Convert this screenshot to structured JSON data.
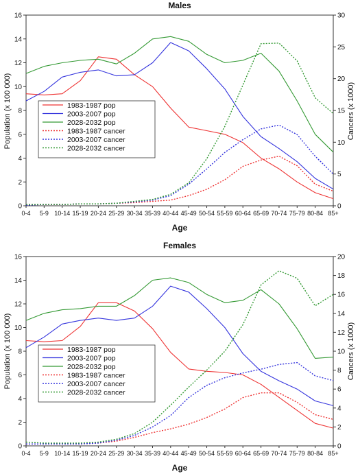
{
  "chart_data": [
    {
      "type": "line",
      "title": "Males",
      "xlabel": "Age",
      "ylabel_left": "Population (x 100 000)",
      "ylabel_right": "Cancers (x 1000)",
      "ylim_left": [
        0,
        16
      ],
      "ylim_right": [
        0,
        30
      ],
      "yticks_left": [
        "0",
        "2",
        "4",
        "6",
        "8",
        "10",
        "12",
        "14",
        "16"
      ],
      "yticks_right": [
        "0",
        "5",
        "10",
        "15",
        "20",
        "25",
        "30"
      ],
      "categories": [
        "0-4",
        "5-9",
        "10-14",
        "15-19",
        "20-24",
        "25-29",
        "30-34",
        "35-39",
        "40-44",
        "45-49",
        "50-54",
        "55-59",
        "60-64",
        "65-69",
        "70-74",
        "75-79",
        "80-84",
        "85+"
      ],
      "legend_position": "left",
      "series": [
        {
          "name": "1983-1987 pop",
          "axis": "left",
          "style": "solid",
          "color": "#ee3333",
          "values": [
            9.4,
            9.3,
            9.4,
            10.5,
            12.5,
            12.3,
            11.0,
            10.0,
            8.2,
            6.6,
            6.3,
            6.0,
            5.3,
            4.0,
            3.1,
            2.0,
            1.1,
            0.6
          ]
        },
        {
          "name": "2003-2007 pop",
          "axis": "left",
          "style": "solid",
          "color": "#3333dd",
          "values": [
            8.8,
            9.6,
            10.8,
            11.2,
            11.4,
            10.9,
            11.0,
            12.0,
            13.7,
            13.0,
            11.5,
            9.8,
            7.5,
            5.8,
            4.8,
            3.7,
            2.3,
            1.4
          ]
        },
        {
          "name": "2028-2032 pop",
          "axis": "left",
          "style": "solid",
          "color": "#339933",
          "values": [
            11.1,
            11.7,
            12.0,
            12.2,
            12.3,
            11.9,
            12.8,
            14.0,
            14.2,
            13.8,
            12.7,
            12.0,
            12.2,
            12.8,
            11.3,
            8.8,
            6.0,
            4.5
          ]
        },
        {
          "name": "1983-1987 cancer",
          "axis": "right",
          "style": "dotted",
          "color": "#ee3333",
          "values": [
            0.2,
            0.2,
            0.2,
            0.3,
            0.3,
            0.4,
            0.5,
            0.7,
            0.9,
            1.6,
            2.6,
            4.1,
            6.2,
            7.2,
            7.8,
            6.3,
            3.4,
            2.3
          ]
        },
        {
          "name": "2003-2007 cancer",
          "axis": "right",
          "style": "dotted",
          "color": "#3333dd",
          "values": [
            0.1,
            0.2,
            0.2,
            0.3,
            0.3,
            0.4,
            0.6,
            0.9,
            1.6,
            3.4,
            5.8,
            8.4,
            10.4,
            12.1,
            12.7,
            11.2,
            7.8,
            5.0
          ]
        },
        {
          "name": "2028-2032 cancer",
          "axis": "right",
          "style": "dotted",
          "color": "#339933",
          "values": [
            0.2,
            0.2,
            0.2,
            0.3,
            0.3,
            0.4,
            0.7,
            1.0,
            1.8,
            3.6,
            7.4,
            12.5,
            19.0,
            25.5,
            25.6,
            22.8,
            17.0,
            14.5
          ]
        }
      ]
    },
    {
      "type": "line",
      "title": "Females",
      "xlabel": "Age",
      "ylabel_left": "Population (x 100 000)",
      "ylabel_right": "Cancers (x 1000)",
      "ylim_left": [
        0,
        16
      ],
      "ylim_right": [
        0,
        20
      ],
      "yticks_left": [
        "0",
        "2",
        "4",
        "6",
        "8",
        "10",
        "12",
        "14",
        "16"
      ],
      "yticks_right": [
        "0",
        "2",
        "4",
        "6",
        "8",
        "10",
        "12",
        "14",
        "16",
        "18",
        "20"
      ],
      "categories": [
        "0-4",
        "5-9",
        "10-14",
        "15-19",
        "20-24",
        "25-29",
        "30-34",
        "35-39",
        "40-44",
        "45-49",
        "50-54",
        "55-59",
        "60-64",
        "65-69",
        "70-74",
        "75-79",
        "80-84",
        "85+"
      ],
      "legend_position": "left",
      "series": [
        {
          "name": "1983-1987 pop",
          "axis": "left",
          "style": "solid",
          "color": "#ee3333",
          "values": [
            8.9,
            8.8,
            8.9,
            10.1,
            12.1,
            12.1,
            11.4,
            9.9,
            7.9,
            6.5,
            6.3,
            6.2,
            6.0,
            5.2,
            4.1,
            3.0,
            1.9,
            1.5
          ]
        },
        {
          "name": "2003-2007 pop",
          "axis": "left",
          "style": "solid",
          "color": "#3333dd",
          "values": [
            8.3,
            9.2,
            10.3,
            10.6,
            10.8,
            10.6,
            10.8,
            11.8,
            13.5,
            13.0,
            11.6,
            10.0,
            7.8,
            6.3,
            5.5,
            4.8,
            3.8,
            3.4
          ]
        },
        {
          "name": "2028-2032 pop",
          "axis": "left",
          "style": "solid",
          "color": "#339933",
          "values": [
            10.6,
            11.2,
            11.5,
            11.6,
            11.8,
            11.8,
            12.7,
            14.0,
            14.2,
            13.8,
            12.8,
            12.1,
            12.3,
            13.2,
            12.0,
            9.9,
            7.4,
            7.5
          ]
        },
        {
          "name": "1983-1987 cancer",
          "axis": "right",
          "style": "dotted",
          "color": "#ee3333",
          "values": [
            0.2,
            0.2,
            0.2,
            0.2,
            0.3,
            0.5,
            0.9,
            1.4,
            1.8,
            2.3,
            3.0,
            3.9,
            5.1,
            5.6,
            5.6,
            4.6,
            3.3,
            2.8
          ]
        },
        {
          "name": "2003-2007 cancer",
          "axis": "right",
          "style": "dotted",
          "color": "#3333dd",
          "values": [
            0.2,
            0.2,
            0.2,
            0.2,
            0.3,
            0.6,
            1.1,
            2.0,
            3.2,
            5.1,
            6.4,
            7.2,
            7.7,
            8.1,
            8.6,
            8.8,
            7.4,
            6.9
          ]
        },
        {
          "name": "2028-2032 cancer",
          "axis": "right",
          "style": "dotted",
          "color": "#339933",
          "values": [
            0.4,
            0.3,
            0.3,
            0.3,
            0.4,
            0.7,
            1.3,
            2.5,
            4.3,
            6.2,
            8.0,
            10.0,
            12.8,
            17.0,
            18.5,
            17.7,
            14.8,
            16.0
          ]
        }
      ]
    }
  ]
}
